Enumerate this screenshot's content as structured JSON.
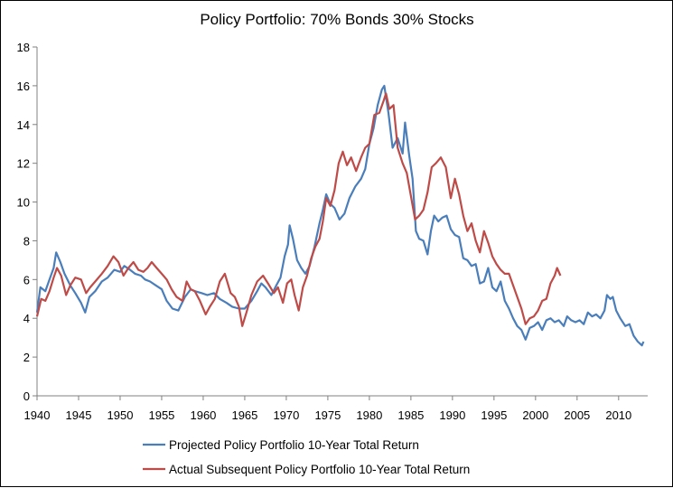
{
  "chart_data": {
    "type": "line",
    "title": "Policy Portfolio: 70% Bonds 30% Stocks",
    "xlabel": "",
    "ylabel": "",
    "xlim": [
      1940,
      2013.5
    ],
    "ylim": [
      0,
      18
    ],
    "x_ticks": [
      "1940",
      "1945",
      "1950",
      "1955",
      "1960",
      "1965",
      "1970",
      "1975",
      "1980",
      "1985",
      "1990",
      "1995",
      "2000",
      "2005",
      "2010"
    ],
    "y_ticks": [
      "0",
      "2",
      "4",
      "6",
      "8",
      "10",
      "12",
      "14",
      "16",
      "18"
    ],
    "grid": false,
    "legend_position": "bottom",
    "colors": {
      "projected": "#4a7ebb",
      "actual": "#be4b48"
    },
    "series": [
      {
        "name": "Projected Policy Portfolio 10-Year Total Return",
        "color": "#4a7ebb",
        "points": [
          [
            1940.0,
            4.3
          ],
          [
            1940.4,
            5.6
          ],
          [
            1941.0,
            5.4
          ],
          [
            1941.5,
            6.0
          ],
          [
            1942.0,
            6.6
          ],
          [
            1942.3,
            7.4
          ],
          [
            1942.8,
            6.9
          ],
          [
            1943.3,
            6.3
          ],
          [
            1944.0,
            5.7
          ],
          [
            1944.6,
            5.3
          ],
          [
            1945.3,
            4.8
          ],
          [
            1945.8,
            4.3
          ],
          [
            1946.3,
            5.1
          ],
          [
            1947.0,
            5.4
          ],
          [
            1947.8,
            5.9
          ],
          [
            1948.5,
            6.1
          ],
          [
            1949.3,
            6.5
          ],
          [
            1950.0,
            6.4
          ],
          [
            1950.5,
            6.7
          ],
          [
            1951.2,
            6.5
          ],
          [
            1951.8,
            6.3
          ],
          [
            1952.5,
            6.2
          ],
          [
            1953.0,
            6.0
          ],
          [
            1953.6,
            5.9
          ],
          [
            1954.3,
            5.7
          ],
          [
            1955.0,
            5.5
          ],
          [
            1955.6,
            4.9
          ],
          [
            1956.3,
            4.5
          ],
          [
            1957.0,
            4.4
          ],
          [
            1957.8,
            5.1
          ],
          [
            1958.5,
            5.5
          ],
          [
            1959.0,
            5.4
          ],
          [
            1959.8,
            5.3
          ],
          [
            1960.5,
            5.2
          ],
          [
            1961.3,
            5.3
          ],
          [
            1962.0,
            5.0
          ],
          [
            1962.8,
            4.8
          ],
          [
            1963.5,
            4.6
          ],
          [
            1964.3,
            4.5
          ],
          [
            1965.0,
            4.5
          ],
          [
            1965.8,
            4.9
          ],
          [
            1966.5,
            5.4
          ],
          [
            1967.0,
            5.8
          ],
          [
            1967.5,
            5.6
          ],
          [
            1968.2,
            5.2
          ],
          [
            1968.8,
            5.7
          ],
          [
            1969.3,
            6.1
          ],
          [
            1969.8,
            7.2
          ],
          [
            1970.2,
            7.8
          ],
          [
            1970.4,
            8.8
          ],
          [
            1970.8,
            8.1
          ],
          [
            1971.3,
            7.0
          ],
          [
            1971.8,
            6.6
          ],
          [
            1972.3,
            6.3
          ],
          [
            1972.8,
            6.7
          ],
          [
            1973.4,
            7.7
          ],
          [
            1974.0,
            8.9
          ],
          [
            1974.4,
            9.6
          ],
          [
            1974.8,
            10.4
          ],
          [
            1975.3,
            9.9
          ],
          [
            1975.8,
            9.7
          ],
          [
            1976.4,
            9.1
          ],
          [
            1977.0,
            9.4
          ],
          [
            1977.6,
            10.2
          ],
          [
            1978.3,
            10.8
          ],
          [
            1979.0,
            11.2
          ],
          [
            1979.5,
            11.7
          ],
          [
            1980.0,
            13.0
          ],
          [
            1980.5,
            13.8
          ],
          [
            1981.0,
            15.0
          ],
          [
            1981.5,
            15.8
          ],
          [
            1981.8,
            16.0
          ],
          [
            1982.3,
            14.6
          ],
          [
            1982.8,
            12.8
          ],
          [
            1983.4,
            13.3
          ],
          [
            1984.0,
            12.5
          ],
          [
            1984.3,
            14.1
          ],
          [
            1984.8,
            12.4
          ],
          [
            1985.2,
            11.2
          ],
          [
            1985.6,
            8.5
          ],
          [
            1986.0,
            8.1
          ],
          [
            1986.5,
            8.0
          ],
          [
            1987.0,
            7.3
          ],
          [
            1987.4,
            8.5
          ],
          [
            1987.8,
            9.3
          ],
          [
            1988.3,
            9.0
          ],
          [
            1988.8,
            9.2
          ],
          [
            1989.3,
            9.3
          ],
          [
            1989.8,
            8.6
          ],
          [
            1990.3,
            8.3
          ],
          [
            1990.8,
            8.2
          ],
          [
            1991.3,
            7.1
          ],
          [
            1991.8,
            7.0
          ],
          [
            1992.3,
            6.7
          ],
          [
            1992.8,
            6.8
          ],
          [
            1993.3,
            5.8
          ],
          [
            1993.8,
            5.9
          ],
          [
            1994.3,
            6.6
          ],
          [
            1994.8,
            5.6
          ],
          [
            1995.3,
            5.4
          ],
          [
            1995.8,
            5.9
          ],
          [
            1996.3,
            4.9
          ],
          [
            1996.8,
            4.5
          ],
          [
            1997.3,
            4.0
          ],
          [
            1997.8,
            3.6
          ],
          [
            1998.3,
            3.4
          ],
          [
            1998.8,
            2.9
          ],
          [
            1999.3,
            3.5
          ],
          [
            1999.8,
            3.6
          ],
          [
            2000.3,
            3.8
          ],
          [
            2000.8,
            3.4
          ],
          [
            2001.3,
            3.9
          ],
          [
            2001.8,
            4.0
          ],
          [
            2002.3,
            3.8
          ],
          [
            2002.8,
            3.9
          ],
          [
            2003.4,
            3.6
          ],
          [
            2003.8,
            4.1
          ],
          [
            2004.3,
            3.9
          ],
          [
            2004.8,
            3.8
          ],
          [
            2005.3,
            3.9
          ],
          [
            2005.8,
            3.7
          ],
          [
            2006.3,
            4.3
          ],
          [
            2006.8,
            4.1
          ],
          [
            2007.3,
            4.2
          ],
          [
            2007.8,
            4.0
          ],
          [
            2008.3,
            4.4
          ],
          [
            2008.6,
            5.2
          ],
          [
            2009.0,
            5.0
          ],
          [
            2009.3,
            5.1
          ],
          [
            2009.7,
            4.4
          ],
          [
            2010.2,
            4.0
          ],
          [
            2010.8,
            3.6
          ],
          [
            2011.3,
            3.7
          ],
          [
            2011.8,
            3.1
          ],
          [
            2012.3,
            2.8
          ],
          [
            2012.8,
            2.6
          ],
          [
            2013.0,
            2.8
          ]
        ]
      },
      {
        "name": "Actual Subsequent Policy Portfolio 10-Year Total Return",
        "color": "#be4b48",
        "points": [
          [
            1940.0,
            4.1
          ],
          [
            1940.5,
            5.0
          ],
          [
            1941.0,
            4.9
          ],
          [
            1941.5,
            5.4
          ],
          [
            1942.0,
            6.1
          ],
          [
            1942.4,
            6.6
          ],
          [
            1942.9,
            6.2
          ],
          [
            1943.5,
            5.2
          ],
          [
            1944.0,
            5.7
          ],
          [
            1944.6,
            6.1
          ],
          [
            1945.3,
            6.0
          ],
          [
            1945.9,
            5.3
          ],
          [
            1946.4,
            5.6
          ],
          [
            1947.0,
            5.9
          ],
          [
            1947.8,
            6.3
          ],
          [
            1948.5,
            6.7
          ],
          [
            1949.2,
            7.2
          ],
          [
            1949.8,
            6.9
          ],
          [
            1950.4,
            6.2
          ],
          [
            1951.0,
            6.6
          ],
          [
            1951.6,
            6.9
          ],
          [
            1952.2,
            6.5
          ],
          [
            1952.8,
            6.4
          ],
          [
            1953.3,
            6.6
          ],
          [
            1953.8,
            6.9
          ],
          [
            1954.4,
            6.6
          ],
          [
            1955.0,
            6.3
          ],
          [
            1955.6,
            6.0
          ],
          [
            1956.2,
            5.5
          ],
          [
            1956.8,
            5.1
          ],
          [
            1957.5,
            4.9
          ],
          [
            1958.0,
            5.9
          ],
          [
            1958.5,
            5.5
          ],
          [
            1959.0,
            5.4
          ],
          [
            1959.6,
            4.9
          ],
          [
            1960.3,
            4.2
          ],
          [
            1960.8,
            4.6
          ],
          [
            1961.4,
            5.0
          ],
          [
            1962.0,
            5.9
          ],
          [
            1962.6,
            6.3
          ],
          [
            1963.3,
            5.3
          ],
          [
            1963.8,
            5.1
          ],
          [
            1964.3,
            4.6
          ],
          [
            1964.7,
            3.6
          ],
          [
            1965.2,
            4.3
          ],
          [
            1965.8,
            5.2
          ],
          [
            1966.5,
            5.9
          ],
          [
            1967.2,
            6.2
          ],
          [
            1967.8,
            5.8
          ],
          [
            1968.5,
            5.3
          ],
          [
            1969.0,
            5.6
          ],
          [
            1969.6,
            4.8
          ],
          [
            1970.1,
            5.8
          ],
          [
            1970.6,
            6.0
          ],
          [
            1971.0,
            5.2
          ],
          [
            1971.5,
            4.4
          ],
          [
            1972.0,
            5.6
          ],
          [
            1972.5,
            6.2
          ],
          [
            1973.0,
            7.1
          ],
          [
            1973.5,
            7.7
          ],
          [
            1974.0,
            8.1
          ],
          [
            1974.4,
            9.0
          ],
          [
            1974.8,
            10.2
          ],
          [
            1975.3,
            9.8
          ],
          [
            1975.8,
            10.6
          ],
          [
            1976.3,
            12.0
          ],
          [
            1976.8,
            12.6
          ],
          [
            1977.3,
            11.9
          ],
          [
            1977.8,
            12.3
          ],
          [
            1978.4,
            11.6
          ],
          [
            1979.0,
            12.3
          ],
          [
            1979.5,
            12.8
          ],
          [
            1980.0,
            13.0
          ],
          [
            1980.6,
            14.5
          ],
          [
            1981.2,
            14.6
          ],
          [
            1981.7,
            15.2
          ],
          [
            1982.0,
            15.6
          ],
          [
            1982.4,
            14.8
          ],
          [
            1982.9,
            15.0
          ],
          [
            1983.4,
            12.8
          ],
          [
            1984.0,
            12.0
          ],
          [
            1984.5,
            11.5
          ],
          [
            1985.0,
            10.3
          ],
          [
            1985.5,
            9.1
          ],
          [
            1986.0,
            9.3
          ],
          [
            1986.5,
            9.6
          ],
          [
            1987.0,
            10.5
          ],
          [
            1987.5,
            11.8
          ],
          [
            1988.0,
            12.0
          ],
          [
            1988.6,
            12.3
          ],
          [
            1989.2,
            11.8
          ],
          [
            1989.8,
            10.2
          ],
          [
            1990.3,
            11.2
          ],
          [
            1990.8,
            10.4
          ],
          [
            1991.3,
            9.3
          ],
          [
            1991.8,
            8.5
          ],
          [
            1992.3,
            8.9
          ],
          [
            1992.8,
            8.0
          ],
          [
            1993.3,
            7.4
          ],
          [
            1993.8,
            8.5
          ],
          [
            1994.3,
            7.9
          ],
          [
            1994.8,
            7.2
          ],
          [
            1995.3,
            6.8
          ],
          [
            1995.8,
            6.5
          ],
          [
            1996.3,
            6.3
          ],
          [
            1996.8,
            6.3
          ],
          [
            1997.3,
            5.7
          ],
          [
            1997.8,
            5.1
          ],
          [
            1998.3,
            4.5
          ],
          [
            1998.8,
            3.7
          ],
          [
            1999.3,
            4.0
          ],
          [
            1999.8,
            4.1
          ],
          [
            2000.3,
            4.4
          ],
          [
            2000.8,
            4.9
          ],
          [
            2001.3,
            5.0
          ],
          [
            2001.8,
            5.8
          ],
          [
            2002.3,
            6.2
          ],
          [
            2002.6,
            6.6
          ],
          [
            2003.0,
            6.2
          ]
        ]
      }
    ]
  }
}
